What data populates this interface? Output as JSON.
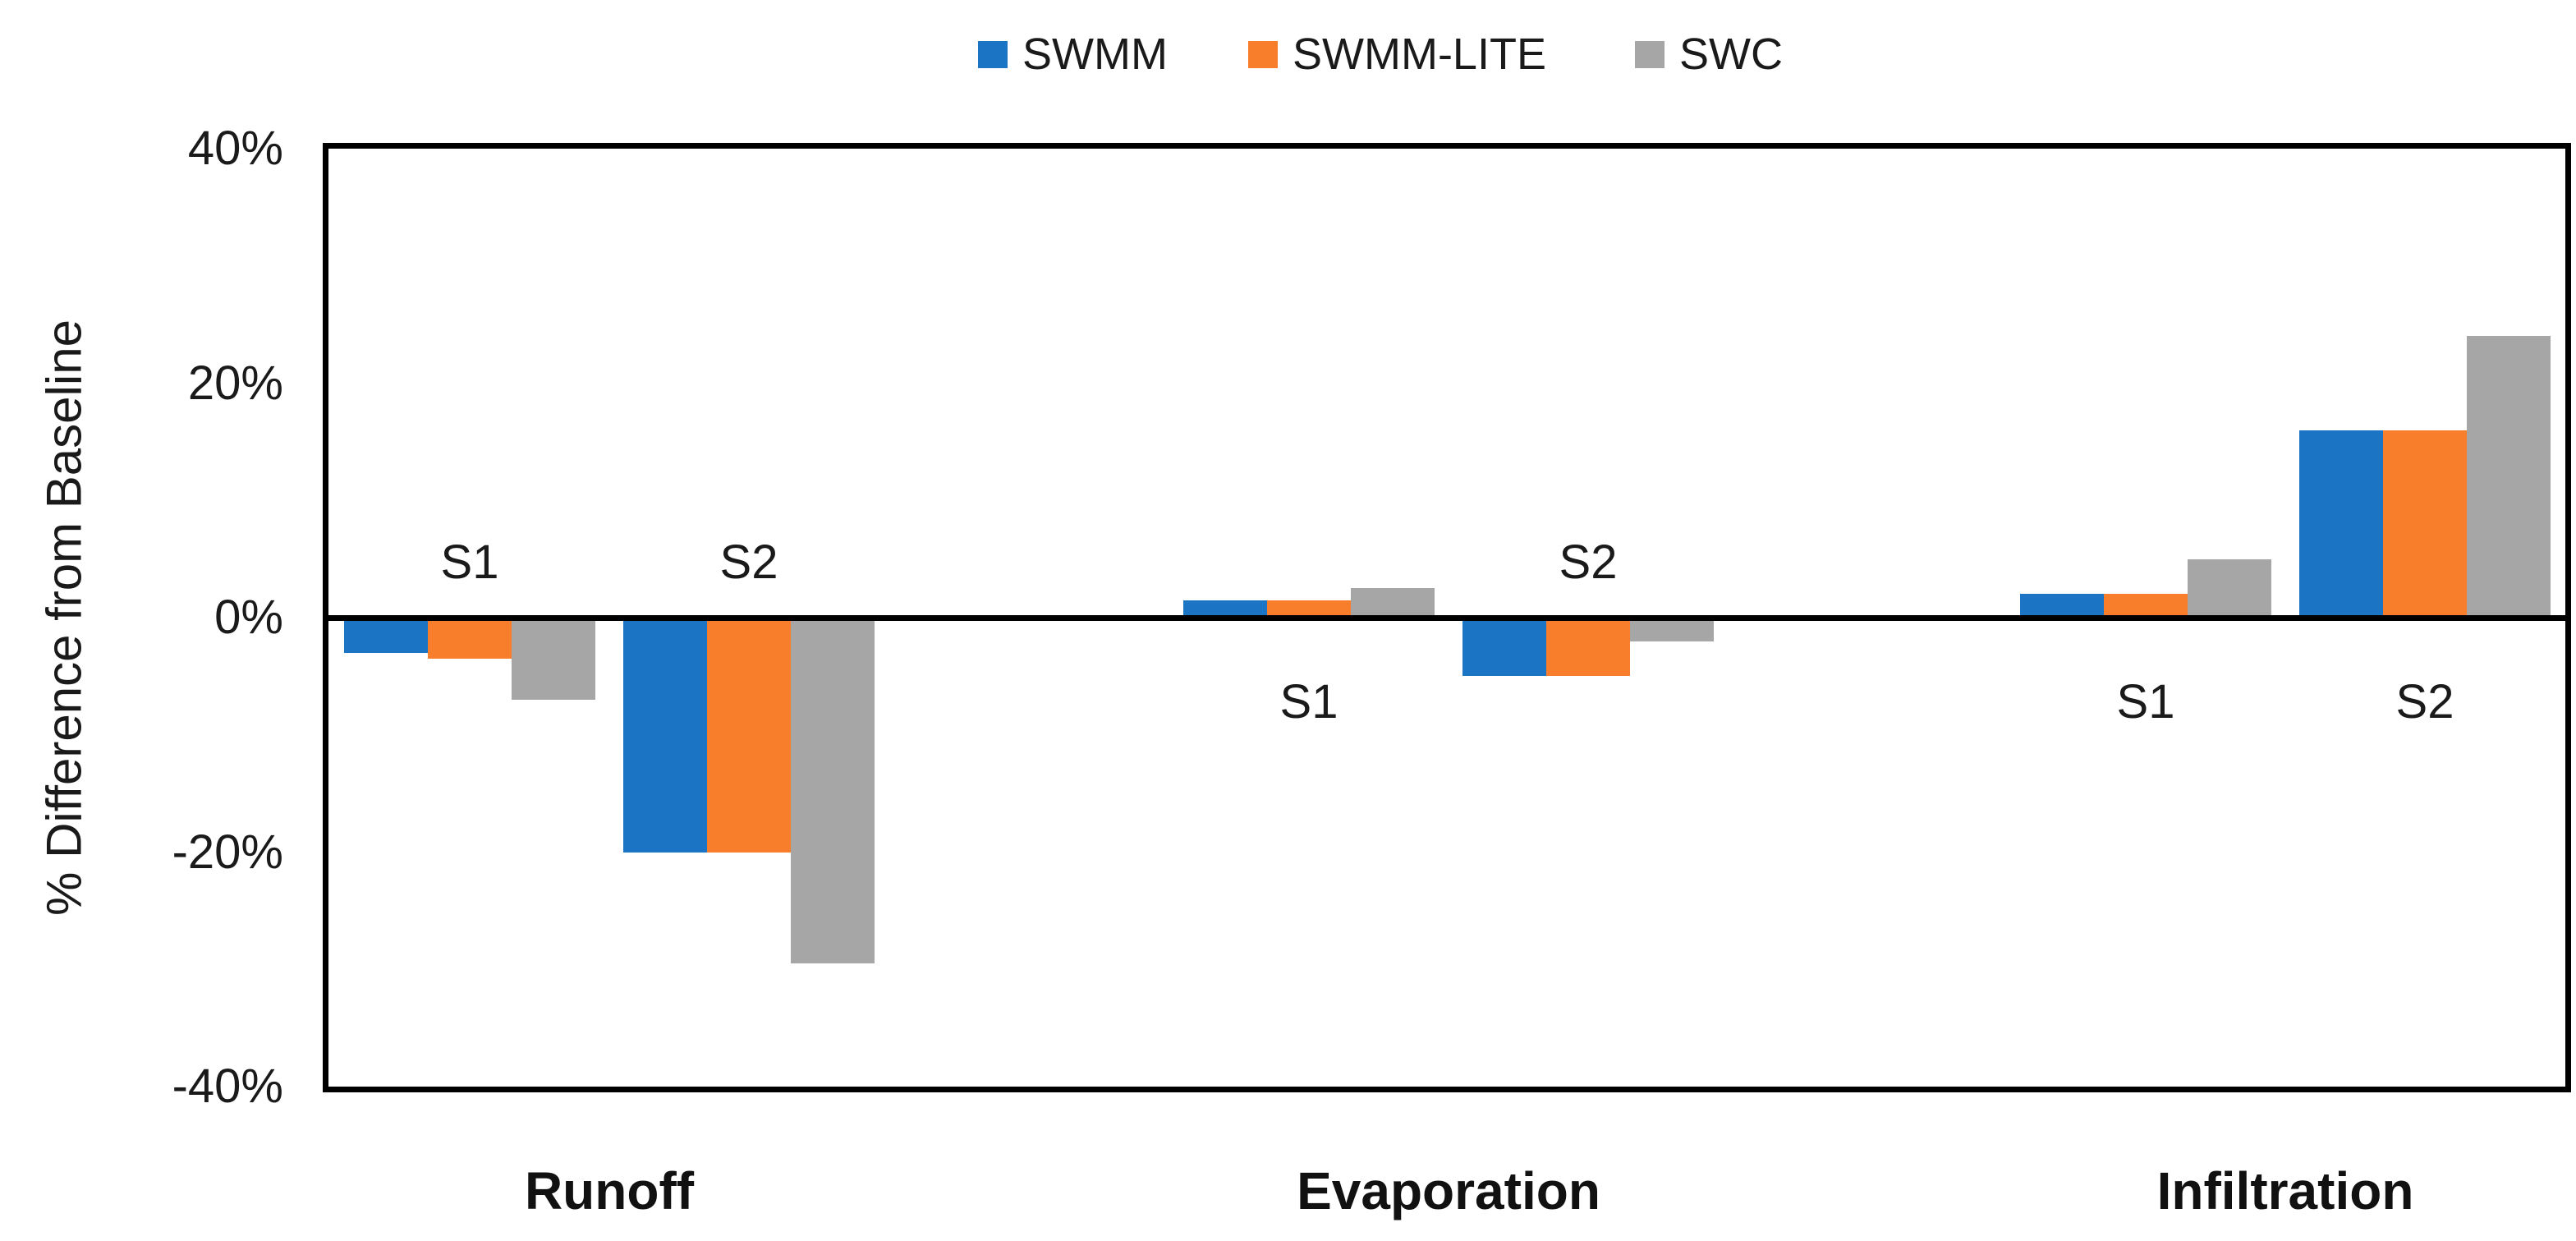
{
  "chart_data": {
    "type": "bar",
    "title": "",
    "ylabel": "% Difference from Baseline",
    "units": "%",
    "ylim": [
      -40,
      40
    ],
    "ytick_values": [
      40,
      20,
      0,
      -20,
      -40
    ],
    "ytick_labels": [
      "40%",
      "20%",
      "0%",
      "-20%",
      "-40%"
    ],
    "grid": false,
    "legend_position": "top-center",
    "axis_color": "#000000",
    "text_color": "#1A1A1A",
    "background_color": "#FFFFFF",
    "categories": [
      "Runoff",
      "Evaporation",
      "Infiltration"
    ],
    "groups": [
      {
        "category": "Runoff",
        "scenario": "S1",
        "label_side": "above"
      },
      {
        "category": "Runoff",
        "scenario": "S2",
        "label_side": "above"
      },
      {
        "category": "Evaporation",
        "scenario": "S1",
        "label_side": "below"
      },
      {
        "category": "Evaporation",
        "scenario": "S2",
        "label_side": "above"
      },
      {
        "category": "Infiltration",
        "scenario": "S1",
        "label_side": "below"
      },
      {
        "category": "Infiltration",
        "scenario": "S2",
        "label_side": "below"
      }
    ],
    "series": [
      {
        "name": "SWMM",
        "color": "#1C75C4",
        "values": [
          -3,
          -20,
          1.5,
          -5,
          2,
          16
        ]
      },
      {
        "name": "SWMM-LITE",
        "color": "#F97E2B",
        "values": [
          -3.5,
          -20,
          1.5,
          -5,
          2,
          16
        ]
      },
      {
        "name": "SWC",
        "color": "#A6A6A6",
        "values": [
          -7,
          -29.5,
          2.5,
          -2,
          5,
          24
        ]
      }
    ]
  }
}
